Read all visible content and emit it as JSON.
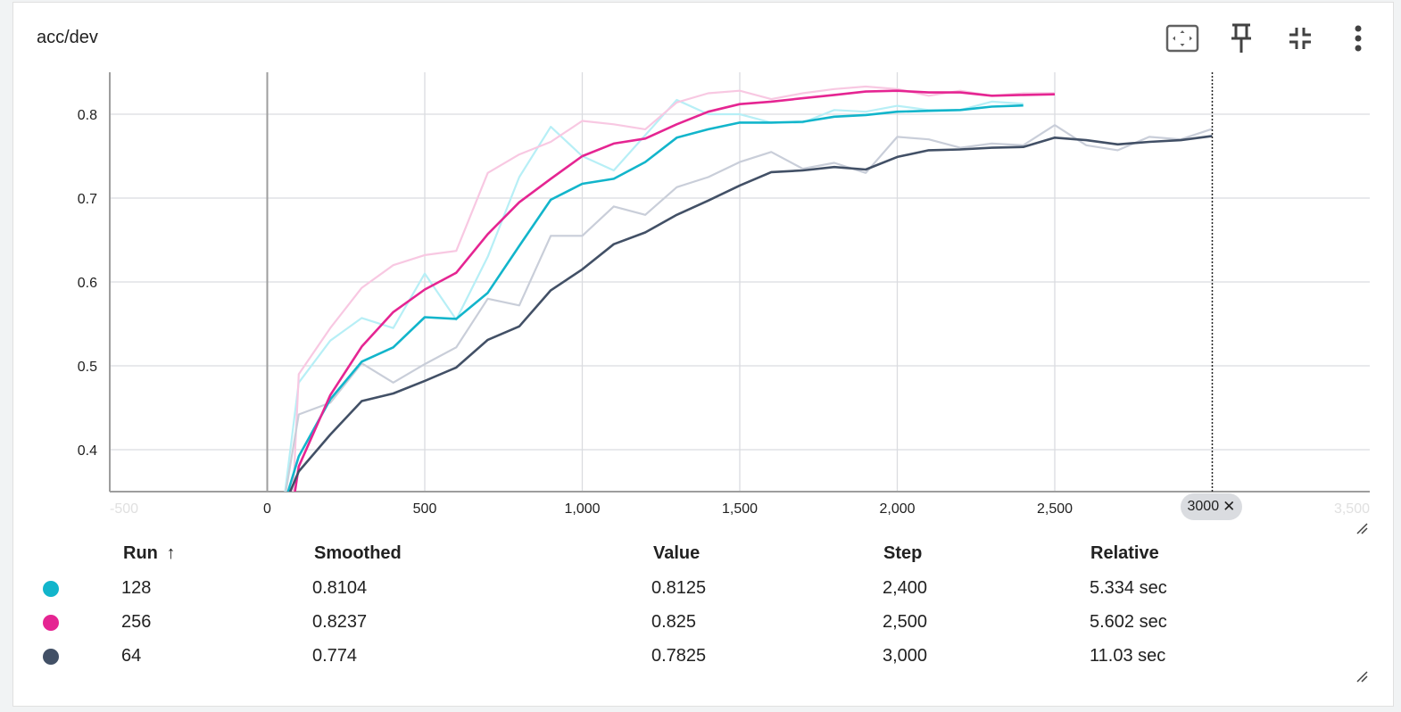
{
  "card": {
    "title": "acc/dev",
    "toolbar": [
      {
        "name": "fit-domain-icon",
        "label": "Fit domain to data"
      },
      {
        "name": "pin-icon",
        "label": "Pin card"
      },
      {
        "name": "collapse-icon",
        "label": "Collapse card"
      },
      {
        "name": "more-vert-icon",
        "label": "More options"
      }
    ]
  },
  "chart_data": {
    "type": "line",
    "title": "acc/dev",
    "xlim": [
      -500,
      3500
    ],
    "ylim": [
      0.35,
      0.85
    ],
    "xticks": [
      -500,
      0,
      500,
      1000,
      1500,
      2000,
      2500,
      3500
    ],
    "xtick_labels": [
      "-500",
      "0",
      "500",
      "1,000",
      "1,500",
      "2,000",
      "2,500",
      "3,500"
    ],
    "yticks": [
      0.4,
      0.5,
      0.6,
      0.7,
      0.8
    ],
    "ytick_labels": [
      "0.4",
      "0.5",
      "0.6",
      "0.7",
      "0.8"
    ],
    "grid": true,
    "hover_step": 3000,
    "hover_step_label": "3000",
    "series": [
      {
        "name": "128",
        "color": "#12b5cb",
        "raw_color": "#b7eff6",
        "x": [
          50,
          100,
          200,
          300,
          400,
          500,
          600,
          700,
          800,
          900,
          1000,
          1100,
          1200,
          1300,
          1400,
          1500,
          1600,
          1700,
          1800,
          1900,
          2000,
          2100,
          2200,
          2300,
          2400
        ],
        "raw": [
          0.33,
          0.48,
          0.53,
          0.557,
          0.545,
          0.61,
          0.555,
          0.63,
          0.725,
          0.785,
          0.75,
          0.733,
          0.775,
          0.817,
          0.8,
          0.8,
          0.79,
          0.79,
          0.805,
          0.803,
          0.81,
          0.805,
          0.805,
          0.815,
          0.8125
        ],
        "smoothed": [
          0.33,
          0.392,
          0.46,
          0.505,
          0.522,
          0.558,
          0.556,
          0.587,
          0.643,
          0.698,
          0.717,
          0.723,
          0.743,
          0.772,
          0.782,
          0.79,
          0.79,
          0.791,
          0.797,
          0.799,
          0.803,
          0.804,
          0.805,
          0.809,
          0.8104
        ]
      },
      {
        "name": "256",
        "color": "#e52592",
        "raw_color": "#f8c8e2",
        "x": [
          80,
          100,
          200,
          300,
          400,
          500,
          600,
          700,
          800,
          900,
          1000,
          1100,
          1200,
          1300,
          1400,
          1500,
          1600,
          1700,
          1800,
          1900,
          2000,
          2100,
          2200,
          2300,
          2400,
          2500
        ],
        "raw": [
          0.33,
          0.49,
          0.545,
          0.593,
          0.62,
          0.632,
          0.637,
          0.73,
          0.752,
          0.767,
          0.792,
          0.788,
          0.782,
          0.814,
          0.825,
          0.828,
          0.818,
          0.825,
          0.83,
          0.833,
          0.83,
          0.822,
          0.828,
          0.822,
          0.825,
          0.825
        ],
        "smoothed": [
          0.33,
          0.38,
          0.465,
          0.523,
          0.564,
          0.591,
          0.611,
          0.657,
          0.695,
          0.723,
          0.75,
          0.765,
          0.771,
          0.788,
          0.803,
          0.812,
          0.815,
          0.819,
          0.823,
          0.827,
          0.828,
          0.826,
          0.826,
          0.822,
          0.823,
          0.8237
        ]
      },
      {
        "name": "64",
        "color": "#425066",
        "raw_color": "#c9ced9",
        "x": [
          50,
          100,
          200,
          300,
          400,
          500,
          600,
          700,
          800,
          900,
          1000,
          1100,
          1200,
          1300,
          1400,
          1500,
          1600,
          1700,
          1800,
          1900,
          2000,
          2100,
          2200,
          2300,
          2400,
          2500,
          2600,
          2700,
          2800,
          2900,
          3000
        ],
        "raw": [
          0.33,
          0.442,
          0.456,
          0.503,
          0.48,
          0.502,
          0.522,
          0.58,
          0.572,
          0.655,
          0.655,
          0.69,
          0.68,
          0.713,
          0.725,
          0.743,
          0.755,
          0.735,
          0.742,
          0.73,
          0.773,
          0.77,
          0.76,
          0.765,
          0.763,
          0.787,
          0.763,
          0.757,
          0.773,
          0.77,
          0.7825
        ],
        "smoothed": [
          0.33,
          0.374,
          0.418,
          0.458,
          0.467,
          0.482,
          0.498,
          0.531,
          0.547,
          0.59,
          0.615,
          0.645,
          0.659,
          0.68,
          0.697,
          0.715,
          0.731,
          0.733,
          0.737,
          0.734,
          0.749,
          0.757,
          0.758,
          0.76,
          0.761,
          0.772,
          0.769,
          0.764,
          0.767,
          0.769,
          0.774
        ]
      }
    ]
  },
  "table": {
    "headers": {
      "run": "Run",
      "sort_icon": "↑",
      "smoothed": "Smoothed",
      "value": "Value",
      "step": "Step",
      "relative": "Relative"
    },
    "rows": [
      {
        "run": "128",
        "color": "#12b5cb",
        "smoothed": "0.8104",
        "value": "0.8125",
        "step": "2,400",
        "relative": "5.334 sec"
      },
      {
        "run": "256",
        "color": "#e52592",
        "smoothed": "0.8237",
        "value": "0.825",
        "step": "2,500",
        "relative": "5.602 sec"
      },
      {
        "run": "64",
        "color": "#425066",
        "smoothed": "0.774",
        "value": "0.7825",
        "step": "3,000",
        "relative": "11.03 sec"
      }
    ]
  }
}
